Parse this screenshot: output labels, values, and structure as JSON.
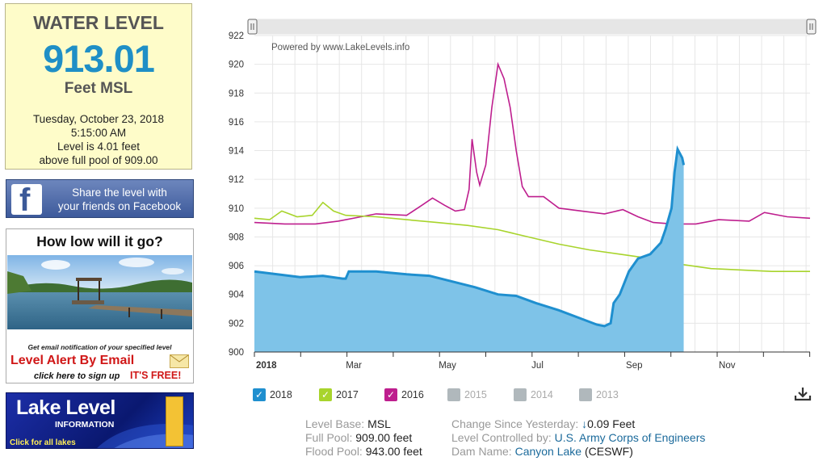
{
  "water_level": {
    "title": "WATER LEVEL",
    "value": "913.01",
    "unit": "Feet MSL",
    "date": "Tuesday, October 23, 2018",
    "time": "5:15:00 AM",
    "level_line1": "Level is 4.01 feet",
    "level_line2": "above full pool of 909.00"
  },
  "facebook_banner": {
    "logo": "f",
    "line1": "Share the level with",
    "line2": "your friends on Facebook"
  },
  "alert_ad": {
    "title": "How low will it go?",
    "sub": "Get email notification of your specified level",
    "main": "Level Alert By Email",
    "signup": "click here to sign up",
    "free": "IT'S FREE!"
  },
  "lake_banner": {
    "title": "Lake Level",
    "sub": "INFORMATION",
    "click": "Click for all lakes"
  },
  "chart_data": {
    "type": "line",
    "credit": "Powered by www.LakeLevels.info",
    "y_ticks": [
      900,
      902,
      904,
      906,
      908,
      910,
      912,
      914,
      916,
      918,
      920,
      922
    ],
    "ylim": [
      900,
      922
    ],
    "x_label_year": "2018",
    "x_month_labels": [
      "Mar",
      "May",
      "Jul",
      "Sep",
      "Nov"
    ],
    "x_domain_days": [
      0,
      365
    ],
    "series": [
      {
        "name": "2018",
        "color": "#1f8fcf",
        "fill": "#7ec3e8",
        "points": [
          [
            0,
            905.6
          ],
          [
            15,
            905.4
          ],
          [
            30,
            905.2
          ],
          [
            45,
            905.3
          ],
          [
            58,
            905.1
          ],
          [
            60,
            905.1
          ],
          [
            62,
            905.6
          ],
          [
            80,
            905.6
          ],
          [
            100,
            905.4
          ],
          [
            115,
            905.3
          ],
          [
            130,
            904.9
          ],
          [
            145,
            904.5
          ],
          [
            160,
            904.0
          ],
          [
            172,
            903.9
          ],
          [
            185,
            903.4
          ],
          [
            200,
            902.9
          ],
          [
            215,
            902.3
          ],
          [
            225,
            901.9
          ],
          [
            230,
            901.8
          ],
          [
            234,
            902.0
          ],
          [
            236,
            903.4
          ],
          [
            240,
            904.0
          ],
          [
            246,
            905.6
          ],
          [
            252,
            906.5
          ],
          [
            260,
            906.8
          ],
          [
            267,
            907.6
          ],
          [
            270,
            908.5
          ],
          [
            274,
            910.0
          ],
          [
            276,
            912.5
          ],
          [
            278,
            914.1
          ],
          [
            281,
            913.5
          ],
          [
            282,
            913.0
          ]
        ]
      },
      {
        "name": "2017",
        "color": "#a8d42c",
        "points": [
          [
            0,
            909.3
          ],
          [
            10,
            909.2
          ],
          [
            18,
            909.8
          ],
          [
            28,
            909.4
          ],
          [
            38,
            909.5
          ],
          [
            45,
            910.4
          ],
          [
            52,
            909.8
          ],
          [
            60,
            909.5
          ],
          [
            80,
            909.4
          ],
          [
            100,
            909.2
          ],
          [
            120,
            909.0
          ],
          [
            140,
            908.8
          ],
          [
            160,
            908.5
          ],
          [
            180,
            908.0
          ],
          [
            200,
            907.5
          ],
          [
            220,
            907.1
          ],
          [
            240,
            906.8
          ],
          [
            260,
            906.5
          ],
          [
            280,
            906.1
          ],
          [
            300,
            905.8
          ],
          [
            320,
            905.7
          ],
          [
            340,
            905.6
          ],
          [
            365,
            905.6
          ]
        ]
      },
      {
        "name": "2016",
        "color": "#be1e8e",
        "points": [
          [
            0,
            909.0
          ],
          [
            20,
            908.9
          ],
          [
            40,
            908.9
          ],
          [
            55,
            909.1
          ],
          [
            70,
            909.4
          ],
          [
            80,
            909.6
          ],
          [
            100,
            909.5
          ],
          [
            110,
            910.2
          ],
          [
            117,
            910.7
          ],
          [
            125,
            910.2
          ],
          [
            132,
            909.8
          ],
          [
            138,
            909.9
          ],
          [
            141,
            911.3
          ],
          [
            143,
            914.8
          ],
          [
            146,
            912.5
          ],
          [
            148,
            911.6
          ],
          [
            152,
            913.0
          ],
          [
            156,
            917.0
          ],
          [
            160,
            920.0
          ],
          [
            164,
            919.0
          ],
          [
            168,
            917.0
          ],
          [
            172,
            914.0
          ],
          [
            176,
            911.5
          ],
          [
            180,
            910.8
          ],
          [
            190,
            910.8
          ],
          [
            200,
            910.0
          ],
          [
            215,
            909.8
          ],
          [
            230,
            909.6
          ],
          [
            242,
            909.9
          ],
          [
            252,
            909.4
          ],
          [
            262,
            909.0
          ],
          [
            275,
            908.9
          ],
          [
            290,
            908.9
          ],
          [
            305,
            909.2
          ],
          [
            325,
            909.1
          ],
          [
            335,
            909.7
          ],
          [
            350,
            909.4
          ],
          [
            365,
            909.3
          ]
        ]
      }
    ],
    "legend": [
      {
        "label": "2018",
        "color": "#1f8fcf",
        "active": true
      },
      {
        "label": "2017",
        "color": "#a8d42c",
        "active": true
      },
      {
        "label": "2016",
        "color": "#be1e8e",
        "active": true
      },
      {
        "label": "2015",
        "color": "#b0b8bc",
        "active": false
      },
      {
        "label": "2014",
        "color": "#b0b8bc",
        "active": false
      },
      {
        "label": "2013",
        "color": "#b0b8bc",
        "active": false
      }
    ]
  },
  "info": {
    "level_base_label": "Level Base:",
    "level_base_value": "MSL",
    "full_pool_label": "Full Pool:",
    "full_pool_value": "909.00 feet",
    "flood_pool_label": "Flood Pool:",
    "flood_pool_value": "943.00 feet",
    "change_label": "Change Since Yesterday:",
    "change_arrow": "↓",
    "change_value": "0.09 Feet",
    "controlled_label": "Level Controlled by:",
    "controlled_value": "U.S. Army Corps of Engineers",
    "dam_label": "Dam Name:",
    "dam_value": "Canyon Lake",
    "dam_code": "(CESWF)"
  }
}
